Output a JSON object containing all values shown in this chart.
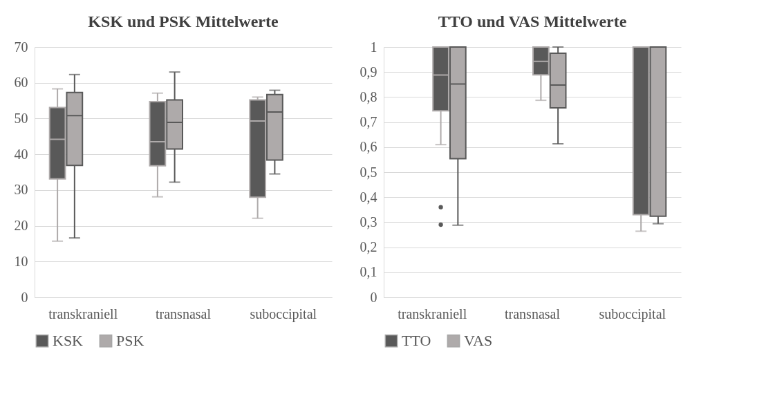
{
  "chart_data": [
    {
      "type": "box",
      "title": "KSK und PSK Mittelwerte",
      "categories": [
        "transkraniell",
        "transnasal",
        "suboccipital"
      ],
      "ylim": [
        0,
        70
      ],
      "yticks": [
        0,
        10,
        20,
        30,
        40,
        50,
        60,
        70
      ],
      "grid": "y",
      "legend": "bottom",
      "series": [
        {
          "name": "KSK",
          "color": "#595959",
          "boxes": [
            {
              "low": 15.7,
              "q1": 33.1,
              "median": 44.2,
              "q3": 53.1,
              "high": 58.3
            },
            {
              "low": 28.1,
              "q1": 36.8,
              "median": 43.5,
              "q3": 54.7,
              "high": 57.1
            },
            {
              "low": 22.1,
              "q1": 28.0,
              "median": 49.3,
              "q3": 55.2,
              "high": 56.0
            }
          ]
        },
        {
          "name": "PSK",
          "color": "#aeaaaa",
          "boxes": [
            {
              "low": 16.6,
              "q1": 36.9,
              "median": 50.8,
              "q3": 57.3,
              "high": 62.3
            },
            {
              "low": 32.2,
              "q1": 41.5,
              "median": 48.9,
              "q3": 55.2,
              "high": 63.0
            },
            {
              "low": 34.5,
              "q1": 38.4,
              "median": 51.8,
              "q3": 56.7,
              "high": 57.9
            }
          ]
        }
      ]
    },
    {
      "type": "box",
      "title": "TTO und VAS Mittelwerte",
      "categories": [
        "transkraniell",
        "transnasal",
        "suboccipital"
      ],
      "ylim": [
        0,
        1
      ],
      "yticks": [
        0,
        {
          "value": 0.1,
          "label": "0,1"
        },
        {
          "value": 0.2,
          "label": "0,2"
        },
        {
          "value": 0.3,
          "label": "0,3"
        },
        {
          "value": 0.4,
          "label": "0,4"
        },
        {
          "value": 0.5,
          "label": "0,5"
        },
        {
          "value": 0.6,
          "label": "0,6"
        },
        {
          "value": 0.7,
          "label": "0,7"
        },
        {
          "value": 0.8,
          "label": "0,8"
        },
        {
          "value": 0.9,
          "label": "0,9"
        },
        1
      ],
      "grid": "y",
      "legend": "bottom",
      "series": [
        {
          "name": "TTO",
          "color": "#595959",
          "boxes": [
            {
              "low": 0.61,
              "q1": 0.745,
              "median": 0.888,
              "q3": 1,
              "high": 1,
              "outliers": [
                0.36,
                0.29
              ]
            },
            {
              "low": 0.787,
              "q1": 0.889,
              "median": 0.943,
              "q3": 1,
              "high": 1
            },
            {
              "low": 0.264,
              "q1": 0.33,
              "median": 1,
              "q3": 1,
              "high": 1
            }
          ]
        },
        {
          "name": "VAS",
          "color": "#aeaaaa",
          "boxes": [
            {
              "low": 0.288,
              "q1": 0.554,
              "median": 0.852,
              "q3": 1,
              "high": 1
            },
            {
              "low": 0.613,
              "q1": 0.757,
              "median": 0.848,
              "q3": 0.975,
              "high": 1
            },
            {
              "low": 0.294,
              "q1": 0.324,
              "median": 1,
              "q3": 1,
              "high": 1
            }
          ]
        }
      ]
    }
  ]
}
